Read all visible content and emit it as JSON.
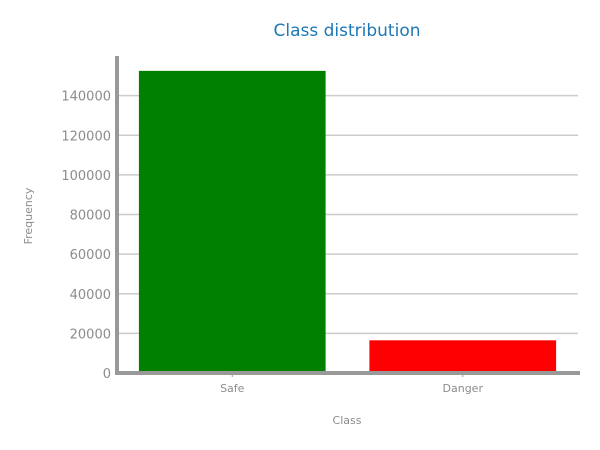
{
  "chart_data": {
    "type": "bar",
    "title": "Class distribution",
    "xlabel": "Class",
    "ylabel": "Frequency",
    "categories": [
      "Safe",
      "Danger"
    ],
    "values": [
      152500,
      16500
    ],
    "colors": [
      "#008000",
      "#ff0000"
    ],
    "ylim": [
      0,
      160000
    ],
    "yticks": [
      0,
      20000,
      40000,
      60000,
      80000,
      100000,
      120000,
      140000
    ],
    "ytick_labels": [
      "0",
      "20000",
      "40000",
      "60000",
      "80000",
      "100000",
      "120000",
      "140000"
    ],
    "grid": true,
    "legend": "none"
  },
  "style": {
    "title_color": "#1f77b4",
    "axis_color": "#999999",
    "grid_color": "#cccccc",
    "text_color": "#8c8c8c"
  }
}
